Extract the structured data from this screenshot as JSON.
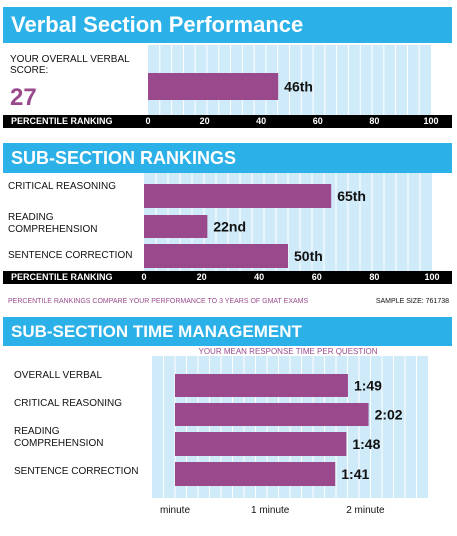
{
  "verbal_section": {
    "title": "Verbal Section Performance",
    "score_label": "YOUR OVERALL VERBAL SCORE:",
    "score_value": "27"
  },
  "sub_section": {
    "title": "SUB-SECTION RANKINGS",
    "footnote": "PERCENTILE RANKINGS COMPARE YOUR PERFORMANCE TO 3 YEARS OF GMAT EXAMS",
    "sample_size": "SAMPLE SIZE: 761738"
  },
  "time_section": {
    "title": "SUB-SECTION TIME MANAGEMENT",
    "caption": "YOUR MEAN RESPONSE TIME PER QUESTION"
  },
  "colors": {
    "header": "#2bb1e8",
    "bar": "#9a4a8c",
    "plot_bg": "#cfeaf8",
    "grid": "#ffffff"
  },
  "chart_data": [
    {
      "type": "bar",
      "orientation": "horizontal",
      "categories": [
        ""
      ],
      "values": [
        46
      ],
      "data_labels": [
        "46th"
      ],
      "xlabel": "PERCENTILE RANKING",
      "xlim": [
        0,
        100
      ],
      "ticks": [
        0,
        20,
        40,
        60,
        80,
        100
      ],
      "tick_labels": [
        "0",
        "20",
        "40",
        "60",
        "80",
        "100"
      ]
    },
    {
      "type": "bar",
      "orientation": "horizontal",
      "categories": [
        "CRITICAL REASONING",
        "READING COMPREHENSION",
        "SENTENCE CORRECTION"
      ],
      "values": [
        65,
        22,
        50
      ],
      "data_labels": [
        "65th",
        "22nd",
        "50th"
      ],
      "xlabel": "PERCENTILE RANKING",
      "xlim": [
        0,
        100
      ],
      "ticks": [
        0,
        20,
        40,
        60,
        80,
        100
      ],
      "tick_labels": [
        "0",
        "20",
        "40",
        "60",
        "80",
        "100"
      ]
    },
    {
      "type": "bar",
      "orientation": "horizontal",
      "categories": [
        "OVERALL VERBAL",
        "CRITICAL REASONING",
        "READING COMPREHENSION",
        "SENTENCE CORRECTION"
      ],
      "values": [
        109,
        122,
        108,
        101
      ],
      "data_labels": [
        "1:49",
        "2:02",
        "1:48",
        "1:41"
      ],
      "xlim": [
        0,
        150
      ],
      "ticks": [
        0,
        60,
        120
      ],
      "tick_labels": [
        "minute",
        "1 minute",
        "2 minute"
      ]
    }
  ]
}
